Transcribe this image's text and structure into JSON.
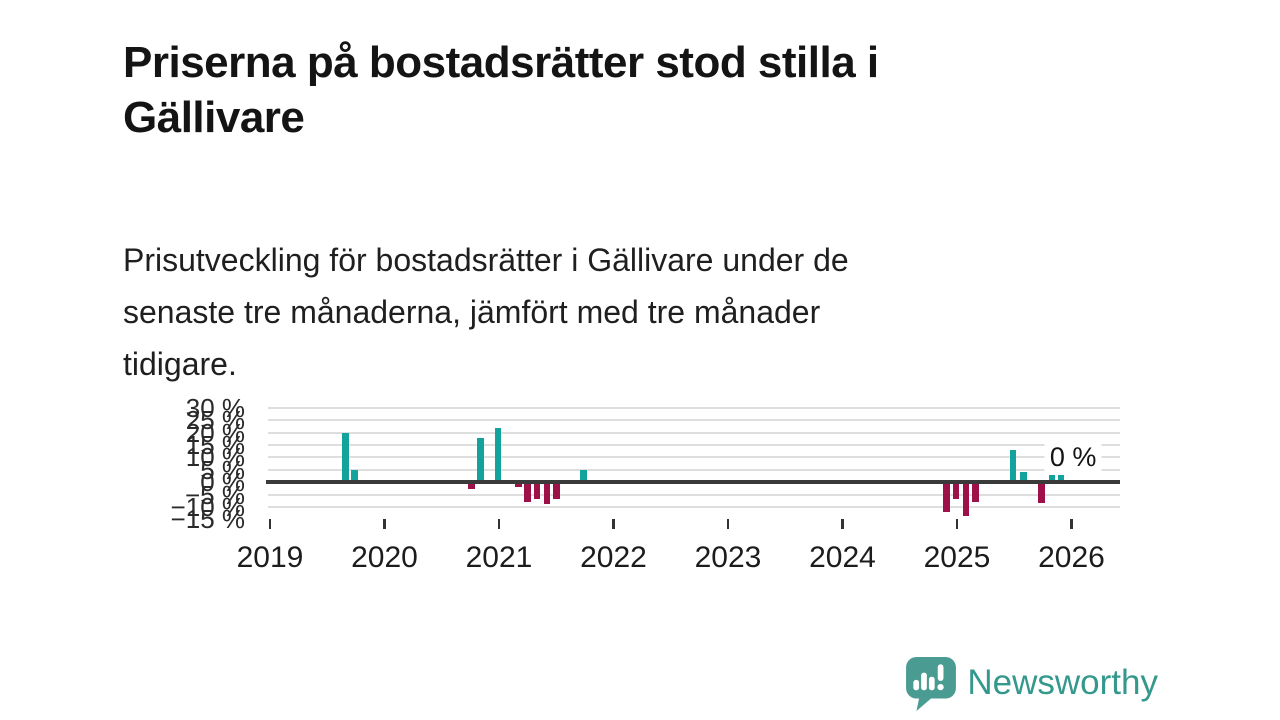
{
  "header": {
    "title": "Priserna på bostadsrätter stod stilla i\nGällivare",
    "subtitle": "Prisutveckling för bostadsrätter i Gällivare under de\nsenaste tre månaderna, jämfört med tre månader\ntidigare."
  },
  "chart_data": {
    "type": "bar",
    "unit": "%",
    "xlim": [
      2019,
      2026.43
    ],
    "ylim": [
      -15,
      30
    ],
    "grid": "horizontal",
    "x_axis": {
      "ticks": [
        "2019",
        "2020",
        "2021",
        "2022",
        "2023",
        "2024",
        "2025",
        "2026"
      ]
    },
    "y_axis": {
      "ticks": [
        {
          "label": "30 %",
          "value": 30
        },
        {
          "label": "25 %",
          "value": 25
        },
        {
          "label": "20 %",
          "value": 20
        },
        {
          "label": "15 %",
          "value": 15
        },
        {
          "label": "10 %",
          "value": 10
        },
        {
          "label": "5 %",
          "value": 5
        },
        {
          "label": "0 %",
          "value": 0
        },
        {
          "label": "−5 %",
          "value": -5
        },
        {
          "label": "−10 %",
          "value": -10
        },
        {
          "label": "−15 %",
          "value": -15
        }
      ]
    },
    "bars": [
      {
        "x": 2019.66,
        "v": 20
      },
      {
        "x": 2019.74,
        "v": 5
      },
      {
        "x": 2020.76,
        "v": -2
      },
      {
        "x": 2020.84,
        "v": 18
      },
      {
        "x": 2020.99,
        "v": 22
      },
      {
        "x": 2021.17,
        "v": -1
      },
      {
        "x": 2021.25,
        "v": -7
      },
      {
        "x": 2021.33,
        "v": -6
      },
      {
        "x": 2021.42,
        "v": -8
      },
      {
        "x": 2021.5,
        "v": -6
      },
      {
        "x": 2021.66,
        "v": 1
      },
      {
        "x": 2021.74,
        "v": 5
      },
      {
        "x": 2024.91,
        "v": -11
      },
      {
        "x": 2024.99,
        "v": -6
      },
      {
        "x": 2025.08,
        "v": -13
      },
      {
        "x": 2025.16,
        "v": -7
      },
      {
        "x": 2025.49,
        "v": 13
      },
      {
        "x": 2025.58,
        "v": 4
      },
      {
        "x": 2025.74,
        "v": -7.5
      },
      {
        "x": 2025.83,
        "v": 3
      },
      {
        "x": 2025.91,
        "v": 5.5
      },
      {
        "x": 2025.99,
        "v": 0
      }
    ],
    "annotation": {
      "text": "0 %",
      "x": 2025.99
    },
    "colors": {
      "positive": "#12a39d",
      "negative": "#9e1148",
      "grid": "#dedede",
      "zero_line": "#3a3a3a"
    }
  },
  "footer": {
    "brand": "Newsworthy",
    "logo_icon": "speech-bubble-bar-chart-exclamation",
    "brand_color": "#35988d"
  }
}
